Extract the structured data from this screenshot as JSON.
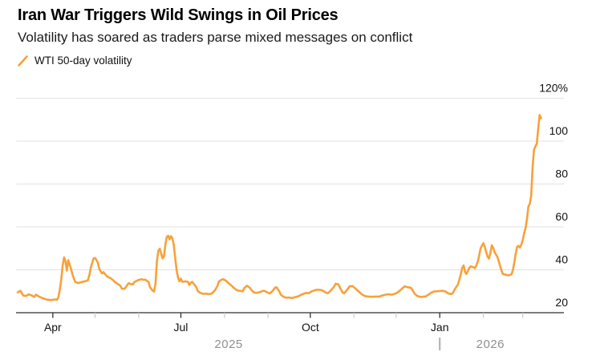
{
  "header": {
    "title": "Iran War Triggers Wild Swings in Oil Prices",
    "subtitle": "Volatility has soared as traders parse mixed messages on conflict"
  },
  "legend": {
    "label": "WTI 50-day volatility"
  },
  "colors": {
    "line": "#F7A13B",
    "grid": "#E1E1E1",
    "axis": "#2F2F2F",
    "tick_major": "#2F2F2F",
    "tick_minor": "#C9C9C9",
    "axis_label": "#111111",
    "year_label": "#8F8F8F",
    "year_divider": "#ADADAD"
  },
  "chart_data": {
    "type": "line",
    "title": "Iran War Triggers Wild Swings in Oil Prices",
    "subtitle": "Volatility has soared as traders parse mixed messages on conflict",
    "series_name": "WTI 50-day volatility",
    "unit": "%",
    "ylim": [
      20,
      120
    ],
    "grid": "horizontal",
    "y_axis_side": "right",
    "y_ticks": [
      {
        "value": 20,
        "label": "20"
      },
      {
        "value": 40,
        "label": "40"
      },
      {
        "value": 60,
        "label": "60"
      },
      {
        "value": 80,
        "label": "80"
      },
      {
        "value": 100,
        "label": "100"
      },
      {
        "value": 120,
        "label": "120%"
      }
    ],
    "x_axis": {
      "ticks": [
        {
          "date": "2025-04-01",
          "label": "Apr"
        },
        {
          "date": "2025-05-01"
        },
        {
          "date": "2025-06-01"
        },
        {
          "date": "2025-07-01",
          "label": "Jul"
        },
        {
          "date": "2025-08-01"
        },
        {
          "date": "2025-09-01"
        },
        {
          "date": "2025-10-01",
          "label": "Oct"
        },
        {
          "date": "2025-11-01"
        },
        {
          "date": "2025-12-01"
        },
        {
          "date": "2026-01-01",
          "label": "Jan"
        },
        {
          "date": "2026-02-01"
        },
        {
          "date": "2026-03-01"
        }
      ],
      "year_labels": [
        {
          "label": "2025",
          "anchor_date": "2025-08-04"
        },
        {
          "label": "2026",
          "anchor_date": "2026-02-06"
        }
      ],
      "year_divider_date": "2026-01-01"
    },
    "points": [
      [
        "2025-03-07",
        29.5
      ],
      [
        "2025-03-09",
        30.2
      ],
      [
        "2025-03-11",
        28.0
      ],
      [
        "2025-03-13",
        27.8
      ],
      [
        "2025-03-15",
        28.6
      ],
      [
        "2025-03-17",
        28.0
      ],
      [
        "2025-03-19",
        27.4
      ],
      [
        "2025-03-20",
        28.4
      ],
      [
        "2025-03-22",
        27.6
      ],
      [
        "2025-03-24",
        27.0
      ],
      [
        "2025-03-26",
        26.5
      ],
      [
        "2025-03-28",
        26.1
      ],
      [
        "2025-03-30",
        25.9
      ],
      [
        "2025-04-01",
        26.0
      ],
      [
        "2025-04-03",
        26.2
      ],
      [
        "2025-04-04",
        26.0
      ],
      [
        "2025-04-05",
        27.3
      ],
      [
        "2025-04-06",
        30.8
      ],
      [
        "2025-04-07",
        35.5
      ],
      [
        "2025-04-08",
        42.0
      ],
      [
        "2025-04-09",
        45.8
      ],
      [
        "2025-04-10",
        44.2
      ],
      [
        "2025-04-11",
        39.6
      ],
      [
        "2025-04-12",
        44.5
      ],
      [
        "2025-04-13",
        42.4
      ],
      [
        "2025-04-14",
        40.2
      ],
      [
        "2025-04-15",
        37.8
      ],
      [
        "2025-04-16",
        35.8
      ],
      [
        "2025-04-17",
        34.3
      ],
      [
        "2025-04-19",
        33.8
      ],
      [
        "2025-04-21",
        34.2
      ],
      [
        "2025-04-23",
        34.5
      ],
      [
        "2025-04-25",
        34.8
      ],
      [
        "2025-04-26",
        35.3
      ],
      [
        "2025-04-27",
        37.6
      ],
      [
        "2025-04-28",
        41.0
      ],
      [
        "2025-04-30",
        45.3
      ],
      [
        "2025-05-01",
        45.5
      ],
      [
        "2025-05-02",
        44.6
      ],
      [
        "2025-05-03",
        43.3
      ],
      [
        "2025-05-04",
        40.4
      ],
      [
        "2025-05-05",
        39.3
      ],
      [
        "2025-05-06",
        38.3
      ],
      [
        "2025-05-07",
        38.9
      ],
      [
        "2025-05-09",
        37.3
      ],
      [
        "2025-05-10",
        36.7
      ],
      [
        "2025-05-12",
        36.1
      ],
      [
        "2025-05-14",
        35.1
      ],
      [
        "2025-05-15",
        34.4
      ],
      [
        "2025-05-17",
        33.5
      ],
      [
        "2025-05-19",
        32.6
      ],
      [
        "2025-05-20",
        31.3
      ],
      [
        "2025-05-22",
        31.1
      ],
      [
        "2025-05-24",
        33.0
      ],
      [
        "2025-05-25",
        33.8
      ],
      [
        "2025-05-26",
        33.4
      ],
      [
        "2025-05-28",
        33.2
      ],
      [
        "2025-05-29",
        34.3
      ],
      [
        "2025-06-01",
        35.3
      ],
      [
        "2025-06-03",
        35.6
      ],
      [
        "2025-06-04",
        35.4
      ],
      [
        "2025-06-06",
        35.3
      ],
      [
        "2025-06-08",
        34.3
      ],
      [
        "2025-06-09",
        31.9
      ],
      [
        "2025-06-11",
        30.3
      ],
      [
        "2025-06-12",
        29.8
      ],
      [
        "2025-06-13",
        33.8
      ],
      [
        "2025-06-14",
        44.0
      ],
      [
        "2025-06-15",
        48.9
      ],
      [
        "2025-06-16",
        49.8
      ],
      [
        "2025-06-17",
        47.6
      ],
      [
        "2025-06-18",
        45.3
      ],
      [
        "2025-06-19",
        46.2
      ],
      [
        "2025-06-20",
        51.8
      ],
      [
        "2025-06-21",
        55.3
      ],
      [
        "2025-06-22",
        55.9
      ],
      [
        "2025-06-23",
        54.2
      ],
      [
        "2025-06-24",
        55.7
      ],
      [
        "2025-06-25",
        54.6
      ],
      [
        "2025-06-26",
        51.5
      ],
      [
        "2025-06-27",
        45.5
      ],
      [
        "2025-06-28",
        39.8
      ],
      [
        "2025-06-29",
        36.3
      ],
      [
        "2025-06-30",
        34.6
      ],
      [
        "2025-07-01",
        35.9
      ],
      [
        "2025-07-02",
        34.4
      ],
      [
        "2025-07-04",
        34.6
      ],
      [
        "2025-07-06",
        34.4
      ],
      [
        "2025-07-07",
        32.9
      ],
      [
        "2025-07-08",
        33.9
      ],
      [
        "2025-07-09",
        34.4
      ],
      [
        "2025-07-10",
        33.6
      ],
      [
        "2025-07-12",
        31.9
      ],
      [
        "2025-07-13",
        30.1
      ],
      [
        "2025-07-15",
        29.2
      ],
      [
        "2025-07-17",
        28.8
      ],
      [
        "2025-07-19",
        28.9
      ],
      [
        "2025-07-21",
        28.6
      ],
      [
        "2025-07-23",
        29.0
      ],
      [
        "2025-07-25",
        30.3
      ],
      [
        "2025-07-27",
        32.4
      ],
      [
        "2025-07-28",
        34.5
      ],
      [
        "2025-07-30",
        35.4
      ],
      [
        "2025-07-31",
        35.6
      ],
      [
        "2025-08-02",
        35.0
      ],
      [
        "2025-08-04",
        33.7
      ],
      [
        "2025-08-06",
        32.6
      ],
      [
        "2025-08-08",
        31.4
      ],
      [
        "2025-08-10",
        30.4
      ],
      [
        "2025-08-12",
        30.2
      ],
      [
        "2025-08-14",
        30.0
      ],
      [
        "2025-08-15",
        31.4
      ],
      [
        "2025-08-17",
        32.6
      ],
      [
        "2025-08-19",
        31.6
      ],
      [
        "2025-08-21",
        30.0
      ],
      [
        "2025-08-23",
        29.2
      ],
      [
        "2025-08-25",
        29.4
      ],
      [
        "2025-08-27",
        29.8
      ],
      [
        "2025-08-29",
        30.3
      ],
      [
        "2025-09-01",
        29.3
      ],
      [
        "2025-09-02",
        28.9
      ],
      [
        "2025-09-04",
        30.0
      ],
      [
        "2025-09-06",
        31.7
      ],
      [
        "2025-09-07",
        31.9
      ],
      [
        "2025-09-09",
        30.0
      ],
      [
        "2025-09-10",
        28.4
      ],
      [
        "2025-09-12",
        27.4
      ],
      [
        "2025-09-14",
        27.0
      ],
      [
        "2025-09-16",
        27.1
      ],
      [
        "2025-09-18",
        26.8
      ],
      [
        "2025-09-20",
        27.2
      ],
      [
        "2025-09-22",
        27.5
      ],
      [
        "2025-09-24",
        28.2
      ],
      [
        "2025-09-26",
        28.8
      ],
      [
        "2025-09-28",
        29.2
      ],
      [
        "2025-09-30",
        29.1
      ],
      [
        "2025-10-01",
        29.6
      ],
      [
        "2025-10-03",
        30.2
      ],
      [
        "2025-10-05",
        30.6
      ],
      [
        "2025-10-07",
        30.7
      ],
      [
        "2025-10-09",
        30.5
      ],
      [
        "2025-10-11",
        29.8
      ],
      [
        "2025-10-13",
        29.1
      ],
      [
        "2025-10-14",
        29.3
      ],
      [
        "2025-10-16",
        30.6
      ],
      [
        "2025-10-18",
        32.2
      ],
      [
        "2025-10-19",
        33.5
      ],
      [
        "2025-10-21",
        33.2
      ],
      [
        "2025-10-22",
        31.7
      ],
      [
        "2025-10-24",
        29.4
      ],
      [
        "2025-10-25",
        29.0
      ],
      [
        "2025-10-27",
        30.5
      ],
      [
        "2025-10-29",
        32.3
      ],
      [
        "2025-10-31",
        32.4
      ],
      [
        "2025-11-02",
        31.3
      ],
      [
        "2025-11-04",
        30.1
      ],
      [
        "2025-11-06",
        28.9
      ],
      [
        "2025-11-08",
        28.0
      ],
      [
        "2025-11-10",
        27.6
      ],
      [
        "2025-11-13",
        27.4
      ],
      [
        "2025-11-16",
        27.5
      ],
      [
        "2025-11-19",
        27.5
      ],
      [
        "2025-11-22",
        28.2
      ],
      [
        "2025-11-25",
        28.6
      ],
      [
        "2025-11-28",
        28.4
      ],
      [
        "2025-12-01",
        29.0
      ],
      [
        "2025-12-03",
        29.9
      ],
      [
        "2025-12-05",
        31.1
      ],
      [
        "2025-12-07",
        32.3
      ],
      [
        "2025-12-09",
        31.9
      ],
      [
        "2025-12-11",
        31.7
      ],
      [
        "2025-12-12",
        31.3
      ],
      [
        "2025-12-14",
        29.0
      ],
      [
        "2025-12-16",
        27.8
      ],
      [
        "2025-12-18",
        27.4
      ],
      [
        "2025-12-20",
        27.4
      ],
      [
        "2025-12-22",
        27.6
      ],
      [
        "2025-12-24",
        28.4
      ],
      [
        "2025-12-26",
        29.4
      ],
      [
        "2025-12-28",
        29.9
      ],
      [
        "2025-12-30",
        30.0
      ],
      [
        "2026-01-01",
        30.1
      ],
      [
        "2026-01-03",
        30.2
      ],
      [
        "2026-01-05",
        29.9
      ],
      [
        "2026-01-07",
        29.0
      ],
      [
        "2026-01-09",
        28.7
      ],
      [
        "2026-01-10",
        29.0
      ],
      [
        "2026-01-11",
        29.9
      ],
      [
        "2026-01-12",
        31.3
      ],
      [
        "2026-01-14",
        33.2
      ],
      [
        "2026-01-15",
        35.6
      ],
      [
        "2026-01-16",
        38.0
      ],
      [
        "2026-01-17",
        41.0
      ],
      [
        "2026-01-18",
        42.0
      ],
      [
        "2026-01-19",
        39.0
      ],
      [
        "2026-01-20",
        38.1
      ],
      [
        "2026-01-21",
        39.5
      ],
      [
        "2026-01-22",
        40.9
      ],
      [
        "2026-01-23",
        41.6
      ],
      [
        "2026-01-25",
        41.2
      ],
      [
        "2026-01-26",
        40.8
      ],
      [
        "2026-01-27",
        42.0
      ],
      [
        "2026-01-28",
        43.8
      ],
      [
        "2026-01-29",
        46.5
      ],
      [
        "2026-01-30",
        50.0
      ],
      [
        "2026-02-01",
        52.4
      ],
      [
        "2026-02-02",
        50.8
      ],
      [
        "2026-02-03",
        48.2
      ],
      [
        "2026-02-04",
        46.2
      ],
      [
        "2026-02-05",
        45.2
      ],
      [
        "2026-02-06",
        47.8
      ],
      [
        "2026-02-07",
        51.4
      ],
      [
        "2026-02-08",
        50.2
      ],
      [
        "2026-02-09",
        48.2
      ],
      [
        "2026-02-11",
        46.0
      ],
      [
        "2026-02-12",
        43.8
      ],
      [
        "2026-02-13",
        41.6
      ],
      [
        "2026-02-14",
        39.4
      ],
      [
        "2026-02-15",
        38.0
      ],
      [
        "2026-02-17",
        37.7
      ],
      [
        "2026-02-19",
        37.4
      ],
      [
        "2026-02-21",
        37.9
      ],
      [
        "2026-02-22",
        39.8
      ],
      [
        "2026-02-23",
        43.5
      ],
      [
        "2026-02-24",
        47.5
      ],
      [
        "2026-02-25",
        50.8
      ],
      [
        "2026-02-26",
        51.1
      ],
      [
        "2026-02-27",
        50.4
      ],
      [
        "2026-02-28",
        51.7
      ],
      [
        "2026-03-01",
        54.0
      ],
      [
        "2026-03-02",
        57.0
      ],
      [
        "2026-03-03",
        59.5
      ],
      [
        "2026-03-04",
        63.5
      ],
      [
        "2026-03-05",
        69.5
      ],
      [
        "2026-03-06",
        70.8
      ],
      [
        "2026-03-07",
        74.5
      ],
      [
        "2026-03-08",
        88.0
      ],
      [
        "2026-03-09",
        96.0
      ],
      [
        "2026-03-10",
        97.6
      ],
      [
        "2026-03-11",
        98.8
      ],
      [
        "2026-03-12",
        106.0
      ],
      [
        "2026-03-13",
        112.2
      ],
      [
        "2026-03-14",
        110.6
      ]
    ]
  }
}
